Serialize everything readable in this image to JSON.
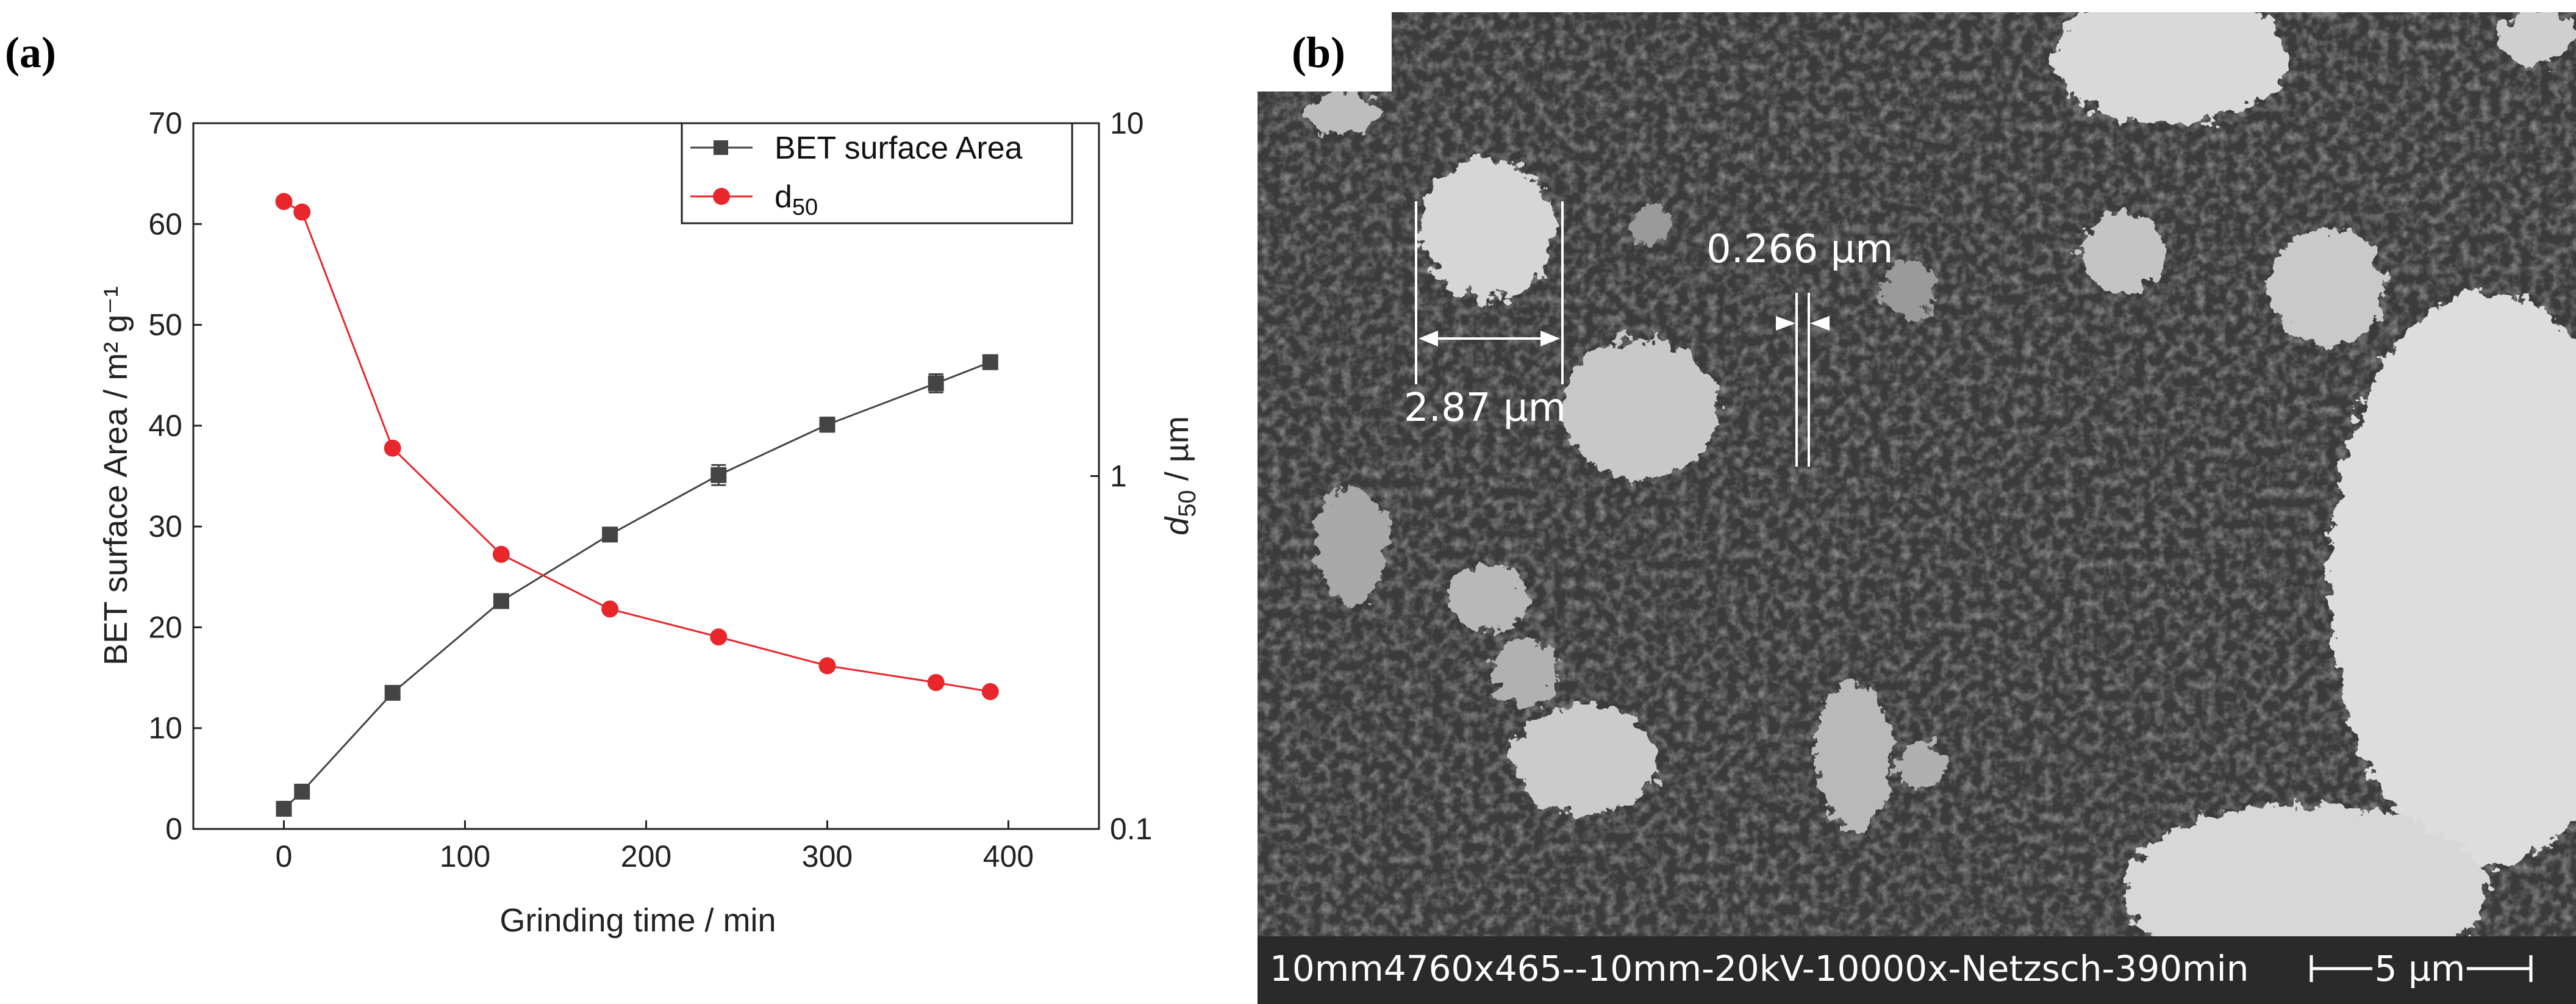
{
  "panels": {
    "a_label": "(a)",
    "b_label": "(b)"
  },
  "chart_data": {
    "type": "line",
    "title": "",
    "xlabel": "Grinding time / min",
    "ylabel_left": "BET surface Area / m² g⁻¹",
    "ylabel_right": "d50 / µm",
    "xlim": [
      -50,
      450
    ],
    "ylim_left": [
      0,
      70
    ],
    "ylim_right": [
      0.1,
      10
    ],
    "right_axis_scale": "log",
    "x_ticks": [
      "0",
      "100",
      "200",
      "300",
      "400"
    ],
    "y_ticks_left": [
      "0",
      "10",
      "20",
      "30",
      "40",
      "50",
      "60",
      "70"
    ],
    "y_ticks_right": [
      "0.1",
      "1",
      "10"
    ],
    "grid": false,
    "legend_position": "top-right",
    "series": [
      {
        "name": "BET surface Area",
        "axis": "left",
        "color": "#444444",
        "marker": "square",
        "x": [
          0,
          10,
          60,
          120,
          180,
          240,
          300,
          360,
          390
        ],
        "y": [
          2.0,
          3.7,
          13.5,
          22.6,
          29.2,
          35.1,
          40.1,
          44.2,
          46.3
        ],
        "error": [
          0,
          0,
          0,
          0,
          0,
          1.0,
          0.7,
          0.9,
          0
        ]
      },
      {
        "name": "d50",
        "name_main": "d",
        "name_sub": "50",
        "axis": "right",
        "color": "#e8262b",
        "marker": "circle",
        "x": [
          0,
          10,
          60,
          120,
          180,
          240,
          300,
          360,
          390
        ],
        "y": [
          6.0,
          5.6,
          1.2,
          0.6,
          0.42,
          0.35,
          0.29,
          0.26,
          0.245
        ]
      }
    ]
  },
  "sem": {
    "measure_1": "2.87 µm",
    "measure_2": "0.266 µm",
    "footer_text": "10mm4760x465--10mm-20kV-10000x-Netzsch-390min",
    "scale_bar": "5 µm"
  }
}
